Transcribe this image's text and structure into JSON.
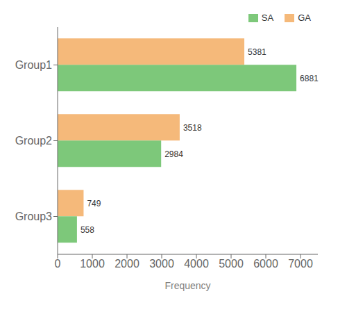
{
  "chart_data": {
    "type": "bar",
    "orientation": "horizontal",
    "categories": [
      "Group1",
      "Group2",
      "Group3"
    ],
    "series": [
      {
        "name": "SA",
        "color": "#7DC87A",
        "values": [
          6881,
          2984,
          558
        ]
      },
      {
        "name": "GA",
        "color": "#F5B97A",
        "values": [
          5381,
          3518,
          749
        ]
      }
    ],
    "xlabel": "Frequency",
    "xlim": [
      0,
      7500
    ],
    "xticks": [
      0,
      1000,
      2000,
      3000,
      4000,
      5000,
      6000,
      7000
    ],
    "data_labels": true,
    "legend": "upper right"
  }
}
